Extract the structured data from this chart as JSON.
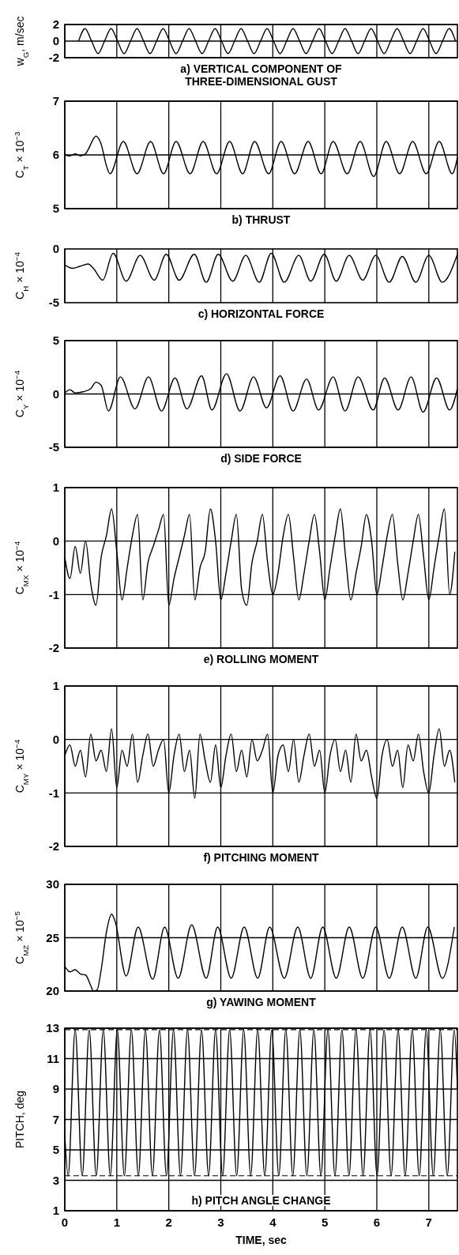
{
  "chart_data": [
    {
      "type": "line",
      "title": "a) VERTICAL COMPONENT OF THREE-DIMENSIONAL GUST",
      "ylabel": "w$_{G}$, m/sec",
      "xlim": [
        0,
        7.55
      ],
      "xticks": [
        0,
        1,
        2,
        3,
        4,
        5,
        6,
        7
      ],
      "ylim": [
        -2,
        2
      ],
      "yticks": [
        -2,
        0,
        2
      ],
      "grid": true,
      "tick_labels": "y",
      "series": [
        {
          "color": "#000000",
          "x": [
            0.265,
            0.39,
            0.515,
            0.64,
            0.765,
            0.89,
            1.015,
            1.14,
            1.265,
            1.39,
            1.515,
            1.64,
            1.765,
            1.89,
            2.015,
            2.14,
            2.265,
            2.39,
            2.515,
            2.64,
            2.765,
            2.89,
            3.015,
            3.14,
            3.265,
            3.39,
            3.515,
            3.64,
            3.765,
            3.89,
            4.015,
            4.14,
            4.265,
            4.39,
            4.515,
            4.64,
            4.765,
            4.89,
            5.015,
            5.14,
            5.265,
            5.39,
            5.515,
            5.64,
            5.765,
            5.89,
            6.015,
            6.14,
            6.265,
            6.39,
            6.515,
            6.64,
            6.765,
            6.89,
            7.015,
            7.14,
            7.265,
            7.39,
            7.515
          ],
          "values": [
            0,
            1.5,
            0,
            -1.5,
            0,
            1.5,
            0,
            -1.5,
            0,
            1.5,
            0,
            -1.5,
            0,
            1.5,
            0,
            -1.5,
            0,
            1.5,
            0,
            -1.5,
            0,
            1.5,
            0,
            -1.5,
            0,
            1.5,
            0,
            -1.5,
            0,
            1.5,
            0,
            -1.5,
            0,
            1.5,
            0,
            -1.5,
            0,
            1.5,
            0,
            -1.5,
            0,
            1.5,
            0,
            -1.5,
            0,
            1.5,
            0,
            -1.5,
            0,
            1.5,
            0,
            -1.5,
            0,
            1.5,
            0,
            -1.5,
            0,
            1.5,
            0
          ]
        }
      ]
    },
    {
      "type": "line",
      "title": "b) THRUST",
      "ylabel": "C$_{T}$ × 10$^{−3}$",
      "xlim": [
        0,
        7.55
      ],
      "xticks": [
        0,
        1,
        2,
        3,
        4,
        5,
        6,
        7
      ],
      "ylim": [
        5,
        7
      ],
      "yticks": [
        5,
        6,
        7
      ],
      "grid": true,
      "tick_labels": "y",
      "series": [
        {
          "color": "#000000",
          "x": [
            0,
            0.1,
            0.2,
            0.3,
            0.4,
            0.45,
            0.6,
            0.7,
            0.8,
            0.87,
            1.125,
            1.39,
            1.65,
            1.9,
            2.14,
            2.41,
            2.66,
            2.92,
            3.17,
            3.42,
            3.65,
            3.92,
            4.16,
            4.42,
            4.68,
            4.93,
            5.16,
            5.43,
            5.68,
            5.94,
            6.18,
            6.44,
            6.69,
            6.95,
            7.2,
            7.45,
            7.55
          ],
          "values": [
            6.0,
            5.98,
            6.02,
            5.98,
            6.02,
            6.1,
            6.35,
            6.2,
            5.8,
            5.65,
            6.25,
            5.65,
            6.25,
            5.65,
            6.25,
            5.65,
            6.25,
            5.65,
            6.25,
            5.65,
            6.25,
            5.65,
            6.25,
            5.65,
            6.25,
            5.65,
            6.25,
            5.65,
            6.25,
            5.6,
            6.25,
            5.65,
            6.25,
            5.65,
            6.25,
            5.65,
            5.95
          ]
        }
      ]
    },
    {
      "type": "line",
      "title": "c) HORIZONTAL FORCE",
      "ylabel": "C$_{H}$ × 10$^{−4}$",
      "xlim": [
        0,
        7.55
      ],
      "xticks": [
        0,
        1,
        2,
        3,
        4,
        5,
        6,
        7
      ],
      "ylim": [
        -5,
        0
      ],
      "yticks": [
        -5,
        0
      ],
      "grid": "x",
      "tick_labels": "y",
      "series": [
        {
          "color": "#000000",
          "x": [
            0,
            0.15,
            0.3,
            0.45,
            0.55,
            0.73,
            0.93,
            1.18,
            1.45,
            1.72,
            1.95,
            2.2,
            2.49,
            2.72,
            2.95,
            3.23,
            3.48,
            3.74,
            3.97,
            4.22,
            4.5,
            4.73,
            4.99,
            5.22,
            5.47,
            5.73,
            5.98,
            6.24,
            6.49,
            6.75,
            7.0,
            7.26,
            7.55
          ],
          "values": [
            -1.5,
            -1.8,
            -1.6,
            -1.4,
            -1.8,
            -2.9,
            -0.4,
            -3.0,
            -0.6,
            -2.9,
            -0.5,
            -2.9,
            -0.5,
            -3.1,
            -0.5,
            -3.0,
            -0.6,
            -3.1,
            -0.4,
            -3.1,
            -0.6,
            -3.0,
            -0.5,
            -3.0,
            -0.6,
            -2.9,
            -0.6,
            -3.1,
            -0.7,
            -3.1,
            -0.6,
            -3.1,
            -0.5
          ]
        }
      ]
    },
    {
      "type": "line",
      "title": "d) SIDE FORCE",
      "ylabel": "C$_{Y}$ × 10$^{−4}$",
      "xlim": [
        0,
        7.55
      ],
      "xticks": [
        0,
        1,
        2,
        3,
        4,
        5,
        6,
        7
      ],
      "ylim": [
        -5,
        5
      ],
      "yticks": [
        -5,
        0,
        5
      ],
      "grid": true,
      "tick_labels": "y",
      "series": [
        {
          "color": "#000000",
          "x": [
            0,
            0.1,
            0.2,
            0.35,
            0.5,
            0.6,
            0.7,
            0.84,
            1.07,
            1.35,
            1.61,
            1.86,
            2.12,
            2.35,
            2.63,
            2.83,
            3.11,
            3.37,
            3.63,
            3.88,
            4.14,
            4.39,
            4.65,
            4.88,
            5.16,
            5.39,
            5.64,
            5.93,
            6.15,
            6.41,
            6.66,
            6.89,
            7.15,
            7.4,
            7.55
          ],
          "values": [
            0.1,
            0.4,
            0.1,
            0.2,
            0.5,
            1.1,
            0.8,
            -1.6,
            1.6,
            -1.4,
            1.6,
            -1.6,
            1.5,
            -1.4,
            1.7,
            -1.5,
            1.9,
            -1.6,
            1.6,
            -1.3,
            1.7,
            -1.6,
            1.4,
            -1.5,
            1.6,
            -1.6,
            1.6,
            -1.5,
            1.5,
            -1.5,
            1.6,
            -1.7,
            1.5,
            -1.5,
            0.5
          ]
        }
      ]
    },
    {
      "type": "line",
      "title": "e) ROLLING MOMENT",
      "ylabel": "C$_{MX}$ × 10$^{−4}$",
      "xlim": [
        0,
        7.55
      ],
      "xticks": [
        0,
        1,
        2,
        3,
        4,
        5,
        6,
        7
      ],
      "ylim": [
        -2,
        1
      ],
      "yticks": [
        -2,
        -1,
        0,
        1
      ],
      "grid": true,
      "tick_labels": "y",
      "series": [
        {
          "color": "#000000",
          "x": [
            0,
            0.1,
            0.2,
            0.3,
            0.4,
            0.5,
            0.6,
            0.7,
            0.8,
            0.9,
            1.0,
            1.1,
            1.2,
            1.3,
            1.4,
            1.5,
            1.6,
            1.7,
            1.8,
            1.9,
            2.0,
            2.1,
            2.2,
            2.3,
            2.4,
            2.5,
            2.6,
            2.7,
            2.8,
            2.9,
            3.0,
            3.1,
            3.2,
            3.3,
            3.4,
            3.5,
            3.6,
            3.7,
            3.8,
            3.9,
            4.0,
            4.1,
            4.2,
            4.3,
            4.4,
            4.5,
            4.6,
            4.7,
            4.8,
            4.9,
            5.0,
            5.1,
            5.2,
            5.3,
            5.4,
            5.5,
            5.6,
            5.7,
            5.8,
            5.9,
            6.0,
            6.1,
            6.2,
            6.3,
            6.4,
            6.5,
            6.6,
            6.7,
            6.8,
            6.9,
            7.0,
            7.1,
            7.2,
            7.3,
            7.4,
            7.5
          ],
          "values": [
            -0.3,
            -0.7,
            -0.1,
            -0.6,
            0.0,
            -0.8,
            -1.2,
            -0.3,
            0.1,
            0.6,
            -0.2,
            -1.1,
            -0.5,
            0.1,
            0.5,
            -1.1,
            -0.4,
            -0.1,
            0.2,
            0.5,
            -1.2,
            -0.7,
            -0.3,
            0.1,
            0.5,
            -1.1,
            -0.5,
            -0.2,
            0.6,
            0.0,
            -1.1,
            -0.6,
            0.0,
            0.5,
            -0.9,
            -1.2,
            -0.4,
            0.0,
            0.5,
            -0.4,
            -1.0,
            -0.6,
            0.1,
            0.5,
            -0.3,
            -1.1,
            -0.6,
            0.0,
            0.5,
            -0.2,
            -1.1,
            -0.5,
            0.1,
            0.6,
            -0.3,
            -1.1,
            -0.6,
            -0.1,
            0.5,
            0.0,
            -1.0,
            -0.5,
            0.1,
            0.5,
            -0.4,
            -1.1,
            -0.6,
            0.0,
            0.5,
            -0.3,
            -1.1,
            -0.5,
            0.1,
            0.6,
            -1.0,
            -0.2
          ]
        }
      ]
    },
    {
      "type": "line",
      "title": "f) PITCHING MOMENT",
      "ylabel": "C$_{MY}$ × 10$^{−4}$",
      "xlim": [
        0,
        7.55
      ],
      "xticks": [
        0,
        1,
        2,
        3,
        4,
        5,
        6,
        7
      ],
      "ylim": [
        -2,
        1
      ],
      "yticks": [
        -2,
        -1,
        0,
        1
      ],
      "grid": true,
      "tick_labels": "y",
      "series": [
        {
          "color": "#000000",
          "x": [
            0,
            0.1,
            0.2,
            0.3,
            0.4,
            0.5,
            0.6,
            0.7,
            0.8,
            0.9,
            1.0,
            1.1,
            1.2,
            1.3,
            1.4,
            1.5,
            1.6,
            1.7,
            1.8,
            1.9,
            2.0,
            2.1,
            2.2,
            2.3,
            2.4,
            2.5,
            2.6,
            2.7,
            2.8,
            2.9,
            3.0,
            3.1,
            3.2,
            3.3,
            3.4,
            3.5,
            3.6,
            3.7,
            3.8,
            3.9,
            4.0,
            4.1,
            4.2,
            4.3,
            4.4,
            4.5,
            4.6,
            4.7,
            4.8,
            4.9,
            5.0,
            5.1,
            5.2,
            5.3,
            5.4,
            5.5,
            5.6,
            5.7,
            5.8,
            5.9,
            6.0,
            6.1,
            6.2,
            6.3,
            6.4,
            6.5,
            6.6,
            6.7,
            6.8,
            6.9,
            7.0,
            7.1,
            7.2,
            7.3,
            7.4,
            7.5
          ],
          "values": [
            -0.3,
            -0.1,
            -0.5,
            -0.2,
            -0.7,
            0.1,
            -0.4,
            -0.2,
            -0.6,
            0.2,
            -0.9,
            -0.2,
            -0.5,
            0.1,
            -0.8,
            -0.3,
            0.1,
            -0.5,
            -0.2,
            0.0,
            -1.0,
            -0.3,
            0.1,
            -0.6,
            -0.2,
            -1.1,
            0.1,
            -0.4,
            -0.8,
            -0.1,
            -0.9,
            -0.3,
            0.1,
            -0.6,
            -0.2,
            -0.7,
            0.0,
            -0.4,
            -0.2,
            0.1,
            -1.0,
            -0.3,
            -0.1,
            -0.6,
            0.0,
            -0.8,
            -0.3,
            0.1,
            -0.5,
            -0.2,
            -1.0,
            -0.3,
            0.0,
            -0.6,
            -0.2,
            -0.8,
            0.1,
            -0.4,
            -0.2,
            -0.7,
            -1.1,
            -0.3,
            0.0,
            -0.5,
            -0.2,
            -0.9,
            -0.1,
            -0.4,
            0.1,
            -0.6,
            -1.0,
            -0.3,
            0.2,
            -0.5,
            -0.2,
            -0.8
          ]
        }
      ]
    },
    {
      "type": "line",
      "title": "g) YAWING MOMENT",
      "ylabel": "C$_{MZ}$ × 10$^{−5}$",
      "xlim": [
        0,
        7.55
      ],
      "xticks": [
        0,
        1,
        2,
        3,
        4,
        5,
        6,
        7
      ],
      "ylim": [
        20,
        30
      ],
      "yticks": [
        20,
        25,
        30
      ],
      "grid": true,
      "tick_labels": "y",
      "series": [
        {
          "color": "#000000",
          "x": [
            0,
            0.1,
            0.2,
            0.3,
            0.4,
            0.5,
            0.55,
            0.62,
            0.7,
            0.8,
            0.9,
            0.97,
            1.18,
            1.41,
            1.69,
            1.92,
            2.18,
            2.44,
            2.72,
            2.94,
            3.2,
            3.45,
            3.71,
            3.94,
            4.22,
            4.48,
            4.73,
            4.96,
            5.22,
            5.47,
            5.73,
            5.98,
            6.24,
            6.49,
            6.75,
            6.98,
            7.26,
            7.49
          ],
          "values": [
            22.3,
            21.8,
            22.0,
            21.6,
            21.5,
            20.5,
            20.0,
            20.1,
            22.0,
            25.5,
            27.2,
            26.5,
            21.4,
            26.0,
            21.1,
            26.0,
            21.2,
            26.2,
            21.2,
            26.0,
            21.2,
            26.0,
            21.2,
            26.0,
            21.2,
            26.0,
            21.2,
            26.0,
            21.2,
            26.0,
            21.2,
            26.0,
            21.2,
            26.0,
            21.2,
            26.0,
            21.2,
            26.0
          ]
        }
      ]
    },
    {
      "type": "line",
      "title": "h) PITCH ANGLE CHANGE",
      "ylabel": "PITCH, deg",
      "xlabel": "TIME, sec",
      "xlim": [
        0,
        7.55
      ],
      "xticks": [
        0,
        1,
        2,
        3,
        4,
        5,
        6,
        7
      ],
      "ylim": [
        1,
        13
      ],
      "yticks": [
        1,
        3,
        5,
        7,
        9,
        11,
        13
      ],
      "grid": true,
      "ref_lines": [
        {
          "axis": "y",
          "value": 12.9,
          "line_style": "dashed"
        },
        {
          "axis": "y",
          "value": 3.3,
          "line_style": "dashed"
        }
      ],
      "series": [
        {
          "color": "#000000",
          "x": [
            0,
            0.065,
            0.2,
            0.335,
            0.47,
            0.605,
            0.74,
            0.875,
            1.01,
            1.145,
            1.28,
            1.415,
            1.55,
            1.685,
            1.82,
            1.955,
            2.09,
            2.225,
            2.36,
            2.495,
            2.63,
            2.765,
            2.9,
            3.035,
            3.17,
            3.305,
            3.44,
            3.575,
            3.71,
            3.845,
            3.98,
            4.115,
            4.25,
            4.385,
            4.52,
            4.655,
            4.79,
            4.925,
            5.06,
            5.195,
            5.33,
            5.465,
            5.6,
            5.735,
            5.87,
            6.005,
            6.14,
            6.275,
            6.41,
            6.545,
            6.68,
            6.815,
            6.95,
            7.085,
            7.22,
            7.355,
            7.49,
            7.55
          ],
          "values": [
            6,
            3.3,
            12.9,
            3.3,
            12.9,
            3.3,
            12.9,
            3.3,
            12.9,
            3.3,
            12.9,
            3.3,
            12.9,
            3.3,
            12.9,
            3.3,
            12.9,
            3.3,
            12.9,
            3.3,
            12.9,
            3.3,
            12.9,
            3.3,
            12.9,
            3.3,
            12.9,
            3.3,
            12.9,
            3.3,
            12.9,
            3.3,
            12.9,
            3.3,
            12.9,
            3.3,
            12.9,
            3.3,
            12.9,
            3.3,
            12.9,
            3.3,
            12.9,
            3.3,
            12.9,
            3.3,
            12.9,
            3.3,
            12.9,
            3.3,
            12.9,
            3.3,
            12.9,
            3.3,
            12.9,
            3.3,
            12.9,
            9
          ]
        }
      ]
    }
  ]
}
